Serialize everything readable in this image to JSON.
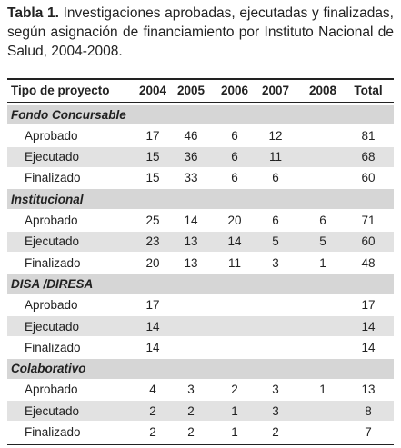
{
  "caption": {
    "label": "Tabla 1.",
    "text": "Investigaciones aprobadas, ejecutadas y finalizadas, según asignación de financiamiento por Instituto Nacional de Salud, 2004-2008."
  },
  "table": {
    "header": [
      "Tipo de proyecto",
      "2004",
      "2005",
      "2006",
      "2007",
      "2008",
      "Total"
    ],
    "groups": [
      {
        "name": "Fondo Concursable",
        "rows": [
          [
            "Aprobado",
            17,
            46,
            6,
            12,
            null,
            81
          ],
          [
            "Ejecutado",
            15,
            36,
            6,
            11,
            null,
            68
          ],
          [
            "Finalizado",
            15,
            33,
            6,
            6,
            null,
            60
          ]
        ]
      },
      {
        "name": "Institucional",
        "rows": [
          [
            "Aprobado",
            25,
            14,
            20,
            6,
            6,
            71
          ],
          [
            "Ejecutado",
            23,
            13,
            14,
            5,
            5,
            60
          ],
          [
            "Finalizado",
            20,
            13,
            11,
            3,
            1,
            48
          ]
        ]
      },
      {
        "name": "DISA /DIRESA",
        "rows": [
          [
            "Aprobado",
            17,
            null,
            null,
            null,
            null,
            17
          ],
          [
            "Ejecutado",
            14,
            null,
            null,
            null,
            null,
            14
          ],
          [
            "Finalizado",
            14,
            null,
            null,
            null,
            null,
            14
          ]
        ]
      },
      {
        "name": "Colaborativo",
        "rows": [
          [
            "Aprobado",
            4,
            3,
            2,
            3,
            1,
            13
          ],
          [
            "Ejecutado",
            2,
            2,
            1,
            3,
            null,
            8
          ],
          [
            "Finalizado",
            2,
            2,
            1,
            2,
            null,
            7
          ]
        ]
      }
    ]
  }
}
